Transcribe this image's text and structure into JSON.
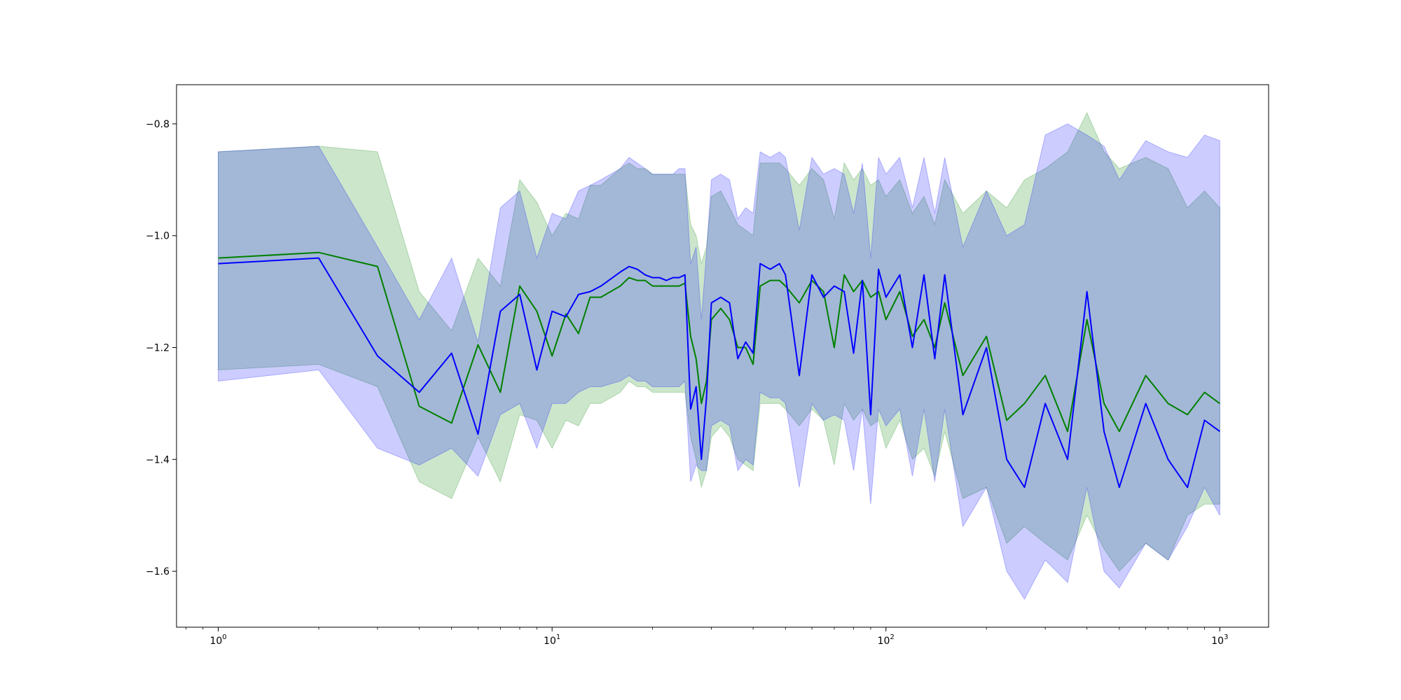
{
  "chart_data": {
    "type": "line",
    "title": "",
    "xlabel": "",
    "ylabel": "",
    "x_scale": "log",
    "xlim": [
      0.75,
      1400
    ],
    "ylim": [
      -1.7,
      -0.73
    ],
    "grid": false,
    "legend": "none",
    "x_ticks": [
      {
        "value": 1,
        "base": "10",
        "exp": "0"
      },
      {
        "value": 10,
        "base": "10",
        "exp": "1"
      },
      {
        "value": 100,
        "base": "10",
        "exp": "2"
      },
      {
        "value": 1000,
        "base": "10",
        "exp": "3"
      }
    ],
    "y_ticks": [
      {
        "value": -0.8,
        "label": "−0.8"
      },
      {
        "value": -1.0,
        "label": "−1.0"
      },
      {
        "value": -1.2,
        "label": "−1.2"
      },
      {
        "value": -1.4,
        "label": "−1.4"
      },
      {
        "value": -1.6,
        "label": "−1.6"
      }
    ],
    "series": [
      {
        "color": "#008000",
        "band_color": "#008000",
        "x": [
          1,
          2,
          3,
          4,
          5,
          6,
          7,
          8,
          9,
          10,
          11,
          12,
          13,
          14,
          16,
          17,
          18,
          19,
          20,
          21,
          22,
          23,
          24,
          25,
          26,
          27,
          28,
          29,
          30,
          32,
          34,
          36,
          38,
          40,
          42,
          45,
          48,
          50,
          55,
          60,
          65,
          70,
          75,
          80,
          85,
          90,
          95,
          100,
          110,
          120,
          130,
          140,
          150,
          170,
          200,
          230,
          260,
          300,
          350,
          400,
          450,
          500,
          600,
          700,
          800,
          900,
          1000
        ],
        "y": [
          -1.04,
          -1.03,
          -1.055,
          -1.305,
          -1.335,
          -1.195,
          -1.28,
          -1.09,
          -1.135,
          -1.215,
          -1.14,
          -1.175,
          -1.11,
          -1.11,
          -1.09,
          -1.075,
          -1.08,
          -1.08,
          -1.09,
          -1.09,
          -1.09,
          -1.09,
          -1.09,
          -1.085,
          -1.18,
          -1.22,
          -1.3,
          -1.26,
          -1.15,
          -1.13,
          -1.15,
          -1.2,
          -1.2,
          -1.23,
          -1.09,
          -1.08,
          -1.08,
          -1.09,
          -1.12,
          -1.08,
          -1.1,
          -1.2,
          -1.07,
          -1.1,
          -1.08,
          -1.11,
          -1.1,
          -1.15,
          -1.1,
          -1.18,
          -1.15,
          -1.2,
          -1.12,
          -1.25,
          -1.18,
          -1.33,
          -1.3,
          -1.25,
          -1.35,
          -1.15,
          -1.3,
          -1.35,
          -1.25,
          -1.3,
          -1.32,
          -1.28,
          -1.3
        ],
        "upper": [
          -0.85,
          -0.84,
          -0.85,
          -1.1,
          -1.17,
          -1.04,
          -1.09,
          -0.9,
          -0.94,
          -1.0,
          -0.96,
          -0.97,
          -0.91,
          -0.91,
          -0.88,
          -0.87,
          -0.88,
          -0.88,
          -0.89,
          -0.89,
          -0.89,
          -0.89,
          -0.89,
          -0.89,
          -0.98,
          -1.0,
          -1.05,
          -1.02,
          -0.93,
          -0.92,
          -0.95,
          -0.98,
          -0.99,
          -1.0,
          -0.87,
          -0.87,
          -0.87,
          -0.88,
          -0.91,
          -0.88,
          -0.9,
          -0.97,
          -0.87,
          -0.9,
          -0.88,
          -0.91,
          -0.9,
          -0.93,
          -0.9,
          -0.96,
          -0.93,
          -0.98,
          -0.9,
          -0.96,
          -0.92,
          -0.95,
          -0.9,
          -0.88,
          -0.85,
          -0.78,
          -0.85,
          -0.88,
          -0.86,
          -0.88,
          -0.95,
          -0.92,
          -0.95
        ],
        "lower": [
          -1.24,
          -1.23,
          -1.27,
          -1.44,
          -1.47,
          -1.36,
          -1.44,
          -1.32,
          -1.33,
          -1.38,
          -1.33,
          -1.34,
          -1.3,
          -1.3,
          -1.28,
          -1.26,
          -1.27,
          -1.27,
          -1.28,
          -1.28,
          -1.28,
          -1.28,
          -1.28,
          -1.28,
          -1.36,
          -1.4,
          -1.45,
          -1.42,
          -1.36,
          -1.34,
          -1.36,
          -1.4,
          -1.41,
          -1.42,
          -1.3,
          -1.3,
          -1.3,
          -1.31,
          -1.34,
          -1.31,
          -1.33,
          -1.41,
          -1.3,
          -1.33,
          -1.31,
          -1.34,
          -1.33,
          -1.38,
          -1.33,
          -1.4,
          -1.38,
          -1.43,
          -1.35,
          -1.47,
          -1.45,
          -1.55,
          -1.52,
          -1.55,
          -1.58,
          -1.5,
          -1.56,
          -1.6,
          -1.55,
          -1.58,
          -1.5,
          -1.48,
          -1.48
        ]
      },
      {
        "color": "#0000ff",
        "band_color": "#0000ff",
        "x": [
          1,
          2,
          3,
          4,
          5,
          6,
          7,
          8,
          9,
          10,
          11,
          12,
          13,
          14,
          16,
          17,
          18,
          19,
          20,
          21,
          22,
          23,
          24,
          25,
          26,
          27,
          28,
          29,
          30,
          32,
          34,
          36,
          38,
          40,
          42,
          45,
          48,
          50,
          55,
          60,
          65,
          70,
          75,
          80,
          85,
          90,
          95,
          100,
          110,
          120,
          130,
          140,
          150,
          170,
          200,
          230,
          260,
          300,
          350,
          400,
          450,
          500,
          600,
          700,
          800,
          900,
          1000
        ],
        "y": [
          -1.05,
          -1.04,
          -1.215,
          -1.28,
          -1.21,
          -1.355,
          -1.135,
          -1.105,
          -1.24,
          -1.135,
          -1.145,
          -1.105,
          -1.1,
          -1.09,
          -1.065,
          -1.055,
          -1.06,
          -1.07,
          -1.075,
          -1.075,
          -1.08,
          -1.075,
          -1.075,
          -1.07,
          -1.31,
          -1.27,
          -1.4,
          -1.29,
          -1.12,
          -1.11,
          -1.12,
          -1.22,
          -1.19,
          -1.21,
          -1.05,
          -1.06,
          -1.05,
          -1.07,
          -1.25,
          -1.07,
          -1.11,
          -1.09,
          -1.1,
          -1.21,
          -1.08,
          -1.32,
          -1.06,
          -1.11,
          -1.07,
          -1.2,
          -1.07,
          -1.22,
          -1.07,
          -1.32,
          -1.2,
          -1.4,
          -1.45,
          -1.3,
          -1.4,
          -1.1,
          -1.35,
          -1.45,
          -1.3,
          -1.4,
          -1.45,
          -1.33,
          -1.35
        ],
        "upper": [
          -0.85,
          -0.84,
          -1.02,
          -1.15,
          -1.04,
          -1.19,
          -0.95,
          -0.92,
          -1.04,
          -0.96,
          -0.97,
          -0.92,
          -0.91,
          -0.9,
          -0.88,
          -0.86,
          -0.87,
          -0.88,
          -0.89,
          -0.89,
          -0.89,
          -0.89,
          -0.88,
          -0.88,
          -1.05,
          -1.02,
          -1.15,
          -1.03,
          -0.9,
          -0.89,
          -0.9,
          -0.97,
          -0.95,
          -0.96,
          -0.85,
          -0.86,
          -0.85,
          -0.86,
          -0.99,
          -0.86,
          -0.89,
          -0.88,
          -0.89,
          -0.96,
          -0.87,
          -1.04,
          -0.86,
          -0.89,
          -0.86,
          -0.95,
          -0.86,
          -0.96,
          -0.86,
          -1.02,
          -0.92,
          -1.0,
          -0.98,
          -0.82,
          -0.8,
          -0.82,
          -0.84,
          -0.9,
          -0.83,
          -0.85,
          -0.86,
          -0.82,
          -0.83
        ],
        "lower": [
          -1.26,
          -1.24,
          -1.38,
          -1.41,
          -1.38,
          -1.43,
          -1.32,
          -1.3,
          -1.38,
          -1.3,
          -1.3,
          -1.28,
          -1.27,
          -1.27,
          -1.26,
          -1.25,
          -1.26,
          -1.26,
          -1.27,
          -1.27,
          -1.27,
          -1.27,
          -1.27,
          -1.26,
          -1.44,
          -1.41,
          -1.42,
          -1.42,
          -1.34,
          -1.33,
          -1.34,
          -1.42,
          -1.4,
          -1.41,
          -1.28,
          -1.29,
          -1.29,
          -1.3,
          -1.45,
          -1.3,
          -1.33,
          -1.32,
          -1.33,
          -1.42,
          -1.31,
          -1.48,
          -1.31,
          -1.34,
          -1.31,
          -1.43,
          -1.31,
          -1.44,
          -1.31,
          -1.52,
          -1.45,
          -1.6,
          -1.65,
          -1.58,
          -1.62,
          -1.45,
          -1.6,
          -1.63,
          -1.55,
          -1.58,
          -1.52,
          -1.45,
          -1.5
        ]
      }
    ]
  }
}
